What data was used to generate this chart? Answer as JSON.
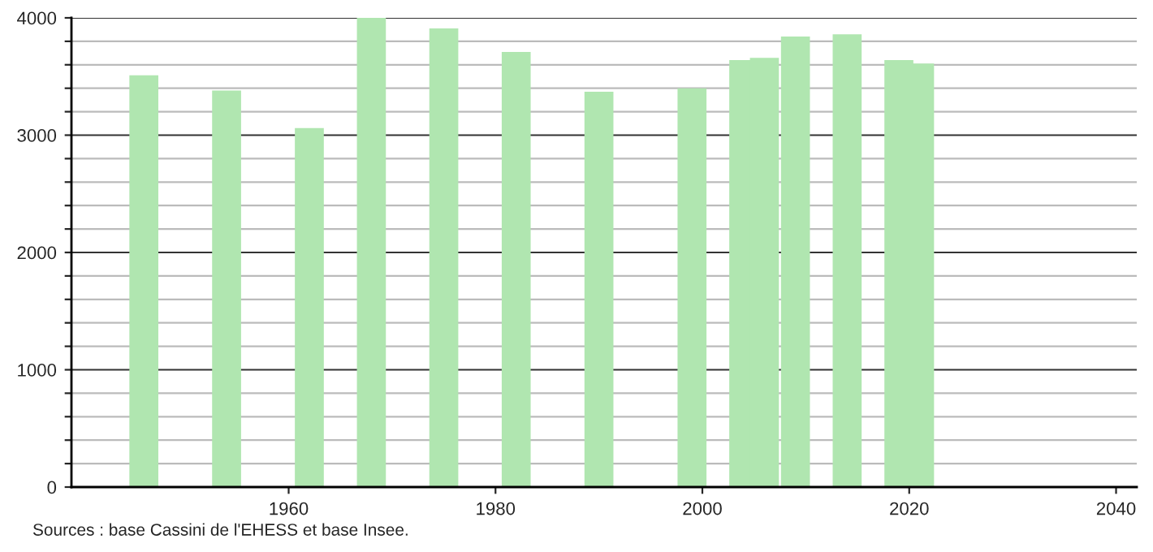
{
  "chart_data": {
    "type": "bar",
    "x": [
      1946,
      1954,
      1962,
      1968,
      1975,
      1982,
      1990,
      1999,
      2004,
      2006,
      2009,
      2014,
      2019,
      2021
    ],
    "values": [
      3510,
      3380,
      3060,
      4000,
      3910,
      3710,
      3370,
      3400,
      3640,
      3660,
      3840,
      3860,
      3640,
      3610
    ],
    "color": "#b0e6b0",
    "xlim": [
      1939,
      2042
    ],
    "xticks": [
      1960,
      1980,
      2000,
      2020,
      2040
    ],
    "ylim": [
      0,
      4000
    ],
    "yticks": [
      0,
      {
        "value": 200,
        "label": null
      },
      {
        "value": 400,
        "label": null
      },
      {
        "value": 600,
        "label": null
      },
      {
        "value": 800,
        "label": null
      },
      1000,
      {
        "value": 1200,
        "label": null
      },
      {
        "value": 1400,
        "label": null
      },
      {
        "value": 1600,
        "label": null
      },
      {
        "value": 1800,
        "label": null
      },
      2000,
      {
        "value": 2200,
        "label": null
      },
      {
        "value": 2400,
        "label": null
      },
      {
        "value": 2600,
        "label": null
      },
      {
        "value": 2800,
        "label": null
      },
      3000,
      {
        "value": 3200,
        "label": null
      },
      {
        "value": 3400,
        "label": null
      },
      {
        "value": 3600,
        "label": null
      },
      {
        "value": 3800,
        "label": null
      },
      4000
    ],
    "grid": "y",
    "annotations": [
      "Sources : base Cassini de l'EHESS et base Insee."
    ]
  }
}
